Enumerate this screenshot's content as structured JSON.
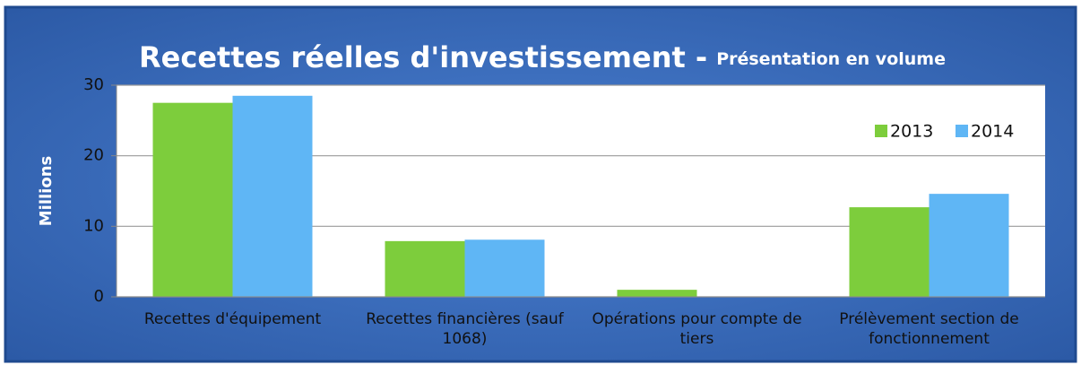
{
  "chart_data": {
    "type": "bar",
    "title": "Recettes réelles d'investissement -",
    "subtitle": "Présentation en volume",
    "y_label": "Millions",
    "categories": [
      "Recettes d'équipement",
      "Recettes financières (sauf 1068)",
      "Opérations pour compte de tiers",
      "Prélèvement section de fonctionnement"
    ],
    "series": [
      {
        "name": "2013",
        "color": "#7dcd3c",
        "values": [
          27.5,
          7.9,
          1.0,
          12.7
        ]
      },
      {
        "name": "2014",
        "color": "#5fb6f5",
        "values": [
          28.5,
          8.1,
          0,
          14.6
        ]
      }
    ],
    "ylim": [
      0,
      30
    ],
    "yticks": [
      0,
      10,
      20,
      30
    ],
    "grid": true,
    "legend": "top-right"
  }
}
